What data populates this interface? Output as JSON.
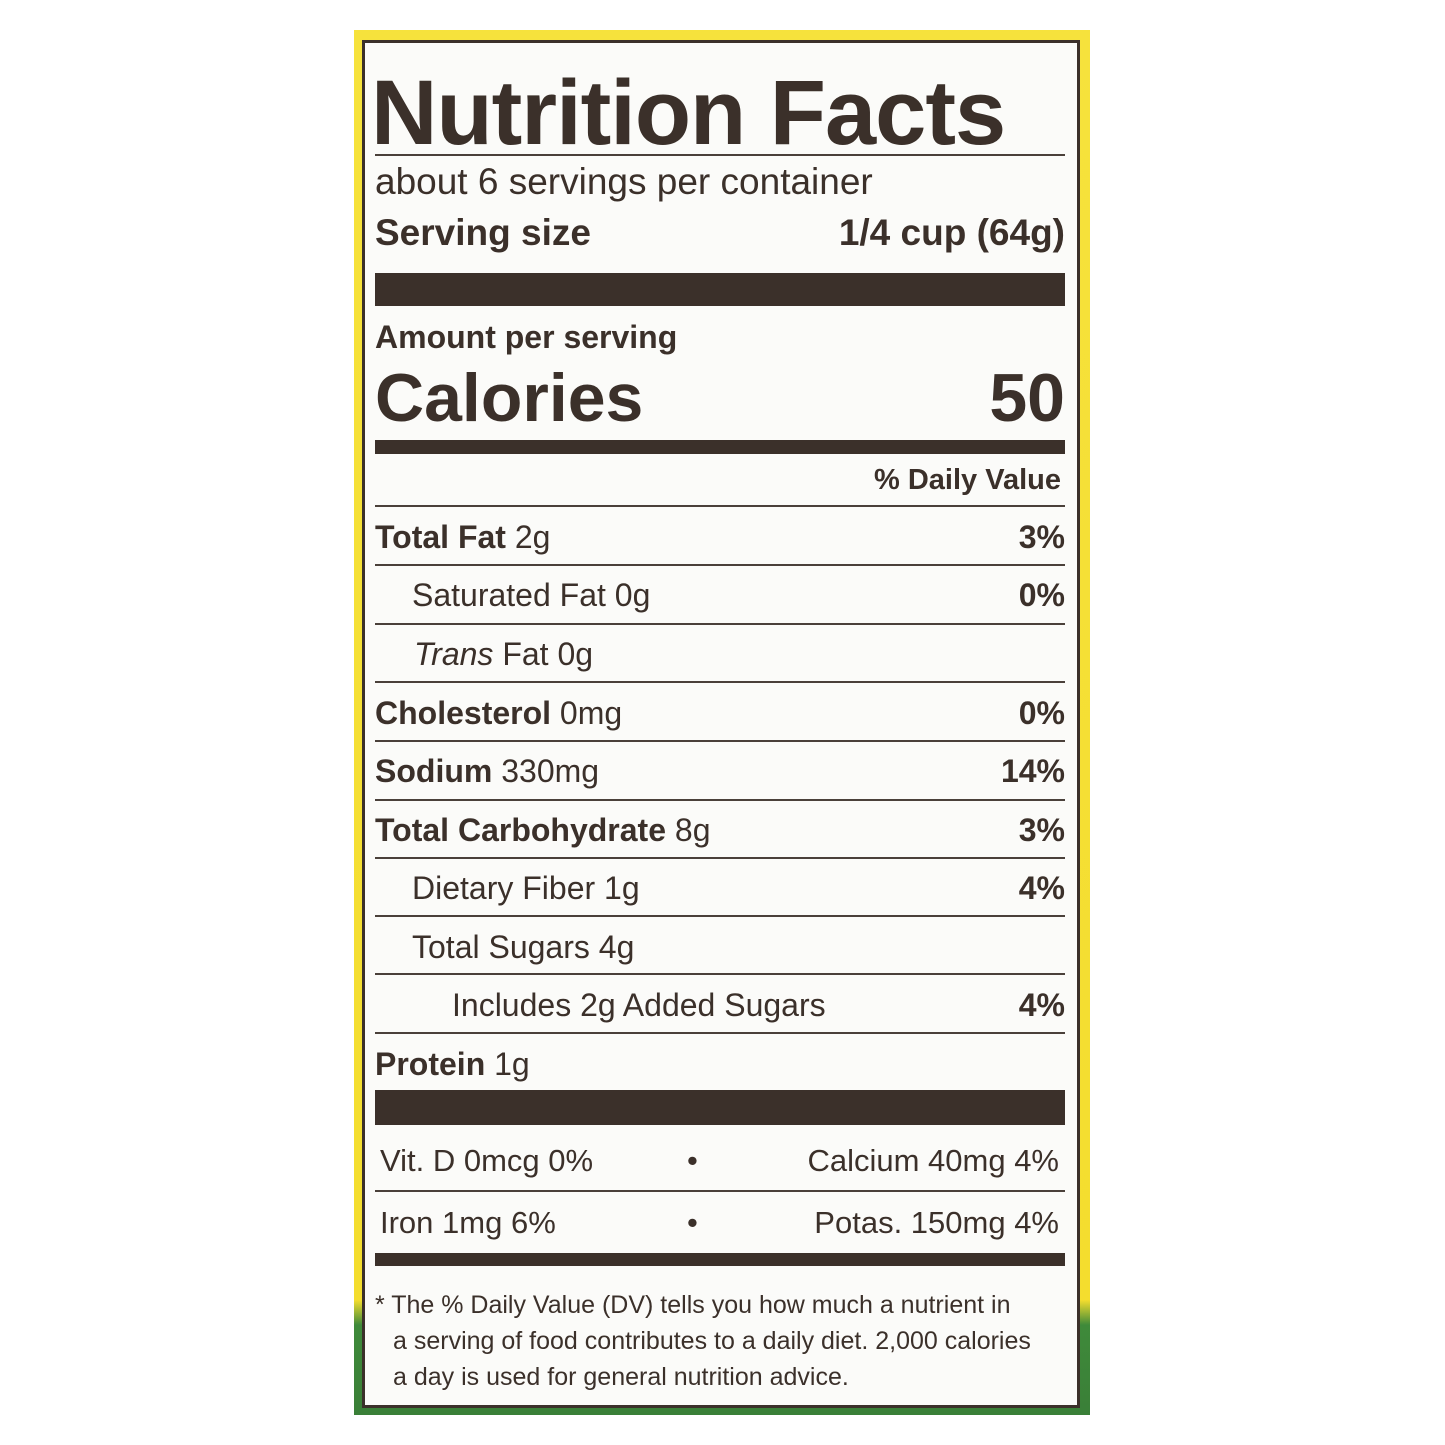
{
  "title": "Nutrition Facts",
  "servings_per_container": "about 6 servings per container",
  "serving_size_label": "Serving size",
  "serving_size_value": "1/4 cup (64g)",
  "amount_per_serving": "Amount per serving",
  "calories_label": "Calories",
  "calories_value": "50",
  "daily_value_header": "% Daily Value",
  "nutrients": [
    {
      "name": "Total Fat",
      "amount": "2g",
      "dv": "3%"
    },
    {
      "name": "Saturated Fat",
      "amount": "0g",
      "dv": "0%"
    },
    {
      "name": "Trans",
      "name_rest": "Fat",
      "amount": "0g",
      "dv": ""
    },
    {
      "name": "Cholesterol",
      "amount": "0mg",
      "dv": "0%"
    },
    {
      "name": "Sodium",
      "amount": "330mg",
      "dv": "14%"
    },
    {
      "name": "Total Carbohydrate",
      "amount": "8g",
      "dv": "3%"
    },
    {
      "name": "Dietary Fiber",
      "amount": "1g",
      "dv": "4%"
    },
    {
      "name": "Total Sugars",
      "amount": "4g",
      "dv": ""
    },
    {
      "name": "Includes 2g Added Sugars",
      "amount": "",
      "dv": "4%"
    },
    {
      "name": "Protein",
      "amount": "1g",
      "dv": ""
    }
  ],
  "vitamins": [
    {
      "left": "Vit. D 0mcg 0%",
      "right": "Calcium 40mg 4%"
    },
    {
      "left": "Iron 1mg 6%",
      "right": "Potas. 150mg 4%"
    }
  ],
  "bullet": "•",
  "footnote": [
    "* The % Daily Value (DV) tells you how much a nutrient in",
    "a serving of food contributes to a daily diet. 2,000 calories",
    "a day is used for general nutrition advice."
  ]
}
